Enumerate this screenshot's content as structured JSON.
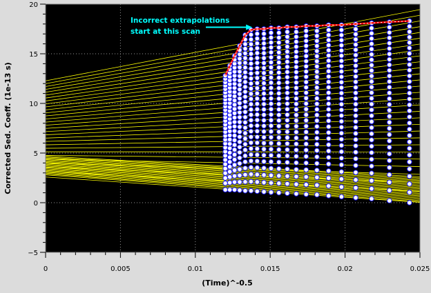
{
  "chart_data": {
    "type": "scatter",
    "xlabel": "(Time)^-0.5",
    "ylabel": "Corrected Sed. Coeff. (1e-13 s)",
    "xlim": [
      0,
      0.025
    ],
    "ylim": [
      -5,
      20
    ],
    "x_ticks": [
      "0",
      "0.005",
      "0.01",
      "0.015",
      "0.02",
      "0.025"
    ],
    "y_ticks": [
      "−5",
      "0",
      "5",
      "10",
      "15",
      "20"
    ],
    "grid": true,
    "background": "#000000",
    "colors": {
      "points": "#ffffff",
      "point_edge": "#1a1aff",
      "fit_lines": "#ffff00",
      "highlight": "#ff0000",
      "annotation": "#00ffff"
    },
    "annotation": {
      "line1": "Incorrect extrapolations",
      "line2": "start at this scan",
      "arrow_to": [
        0.0138,
        17.6
      ]
    },
    "scan_x": [
      0.012,
      0.0123,
      0.01262,
      0.01296,
      0.01333,
      0.01372,
      0.01413,
      0.01458,
      0.01506,
      0.01558,
      0.01614,
      0.01674,
      0.0174,
      0.01812,
      0.0189,
      0.01976,
      0.02071,
      0.02177,
      0.02296,
      0.0243
    ],
    "boundary_fractions": 30,
    "point_y_range": {
      "lowest": [
        1.3,
        1.3,
        1.3,
        1.25,
        1.2,
        1.2,
        1.15,
        1.1,
        1.05,
        1.0,
        0.95,
        0.9,
        0.85,
        0.8,
        0.7,
        0.6,
        0.5,
        0.4,
        0.2,
        0.0
      ],
      "highest": [
        12.8,
        13.8,
        14.8,
        15.8,
        16.9,
        17.4,
        17.5,
        17.5,
        17.6,
        17.6,
        17.7,
        17.7,
        17.8,
        17.8,
        17.9,
        17.9,
        18.0,
        18.1,
        18.2,
        18.3
      ]
    },
    "highlight_series": {
      "x": [
        0.012,
        0.0123,
        0.01262,
        0.01296,
        0.01333,
        0.01372,
        0.01413,
        0.01458,
        0.01506,
        0.01558,
        0.01614,
        0.01674,
        0.0174,
        0.01812,
        0.0189,
        0.01976,
        0.02071,
        0.02177,
        0.02296,
        0.0243
      ],
      "y": [
        12.8,
        13.8,
        14.8,
        15.8,
        16.9,
        17.4,
        17.5,
        17.5,
        17.6,
        17.6,
        17.7,
        17.7,
        17.8,
        17.8,
        17.9,
        17.9,
        18.0,
        18.1,
        18.2,
        18.3
      ]
    }
  }
}
